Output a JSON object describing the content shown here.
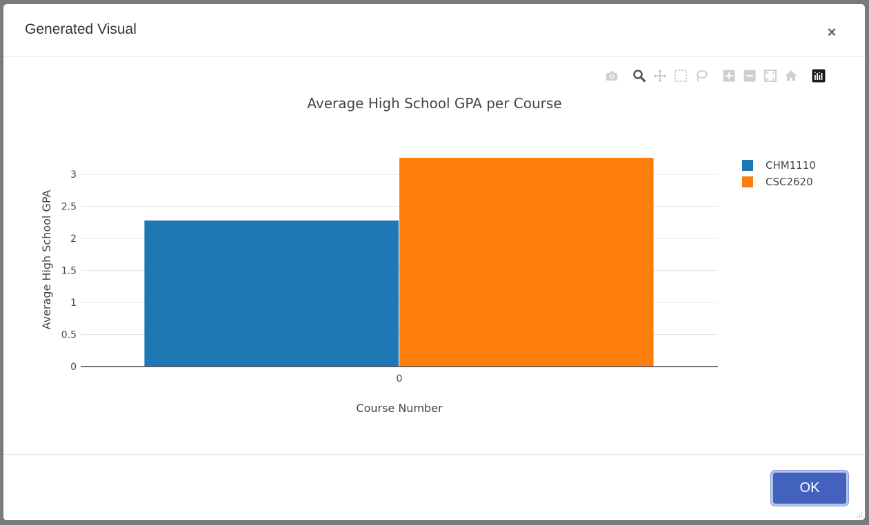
{
  "dialog": {
    "title": "Generated Visual",
    "close_label": "×",
    "ok_label": "OK"
  },
  "modebar": {
    "buttons": [
      {
        "icon": "camera-icon"
      },
      {
        "icon": "zoom-icon"
      },
      {
        "icon": "pan-icon"
      },
      {
        "icon": "box-select-icon"
      },
      {
        "icon": "lasso-select-icon"
      },
      {
        "icon": "zoom-in-icon"
      },
      {
        "icon": "zoom-out-icon"
      },
      {
        "icon": "autoscale-icon"
      },
      {
        "icon": "reset-axes-icon"
      },
      {
        "icon": "plotly-logo-icon"
      }
    ]
  },
  "chart_data": {
    "type": "bar",
    "title": "Average High School GPA per Course",
    "xlabel": "Course Number",
    "ylabel": "Average High School GPA",
    "categories": [
      "0"
    ],
    "series": [
      {
        "name": "CHM1110",
        "values": [
          2.28
        ],
        "color": "#1f77b4"
      },
      {
        "name": "CSC2620",
        "values": [
          3.26
        ],
        "color": "#ff7f0e"
      }
    ],
    "ylim": [
      0,
      3.4
    ],
    "yticks": [
      0,
      0.5,
      1,
      1.5,
      2,
      2.5,
      3
    ],
    "ytick_labels": [
      "0",
      "0.5",
      "1",
      "1.5",
      "2",
      "2.5",
      "3"
    ],
    "grid": true,
    "legend_position": "top-right"
  }
}
